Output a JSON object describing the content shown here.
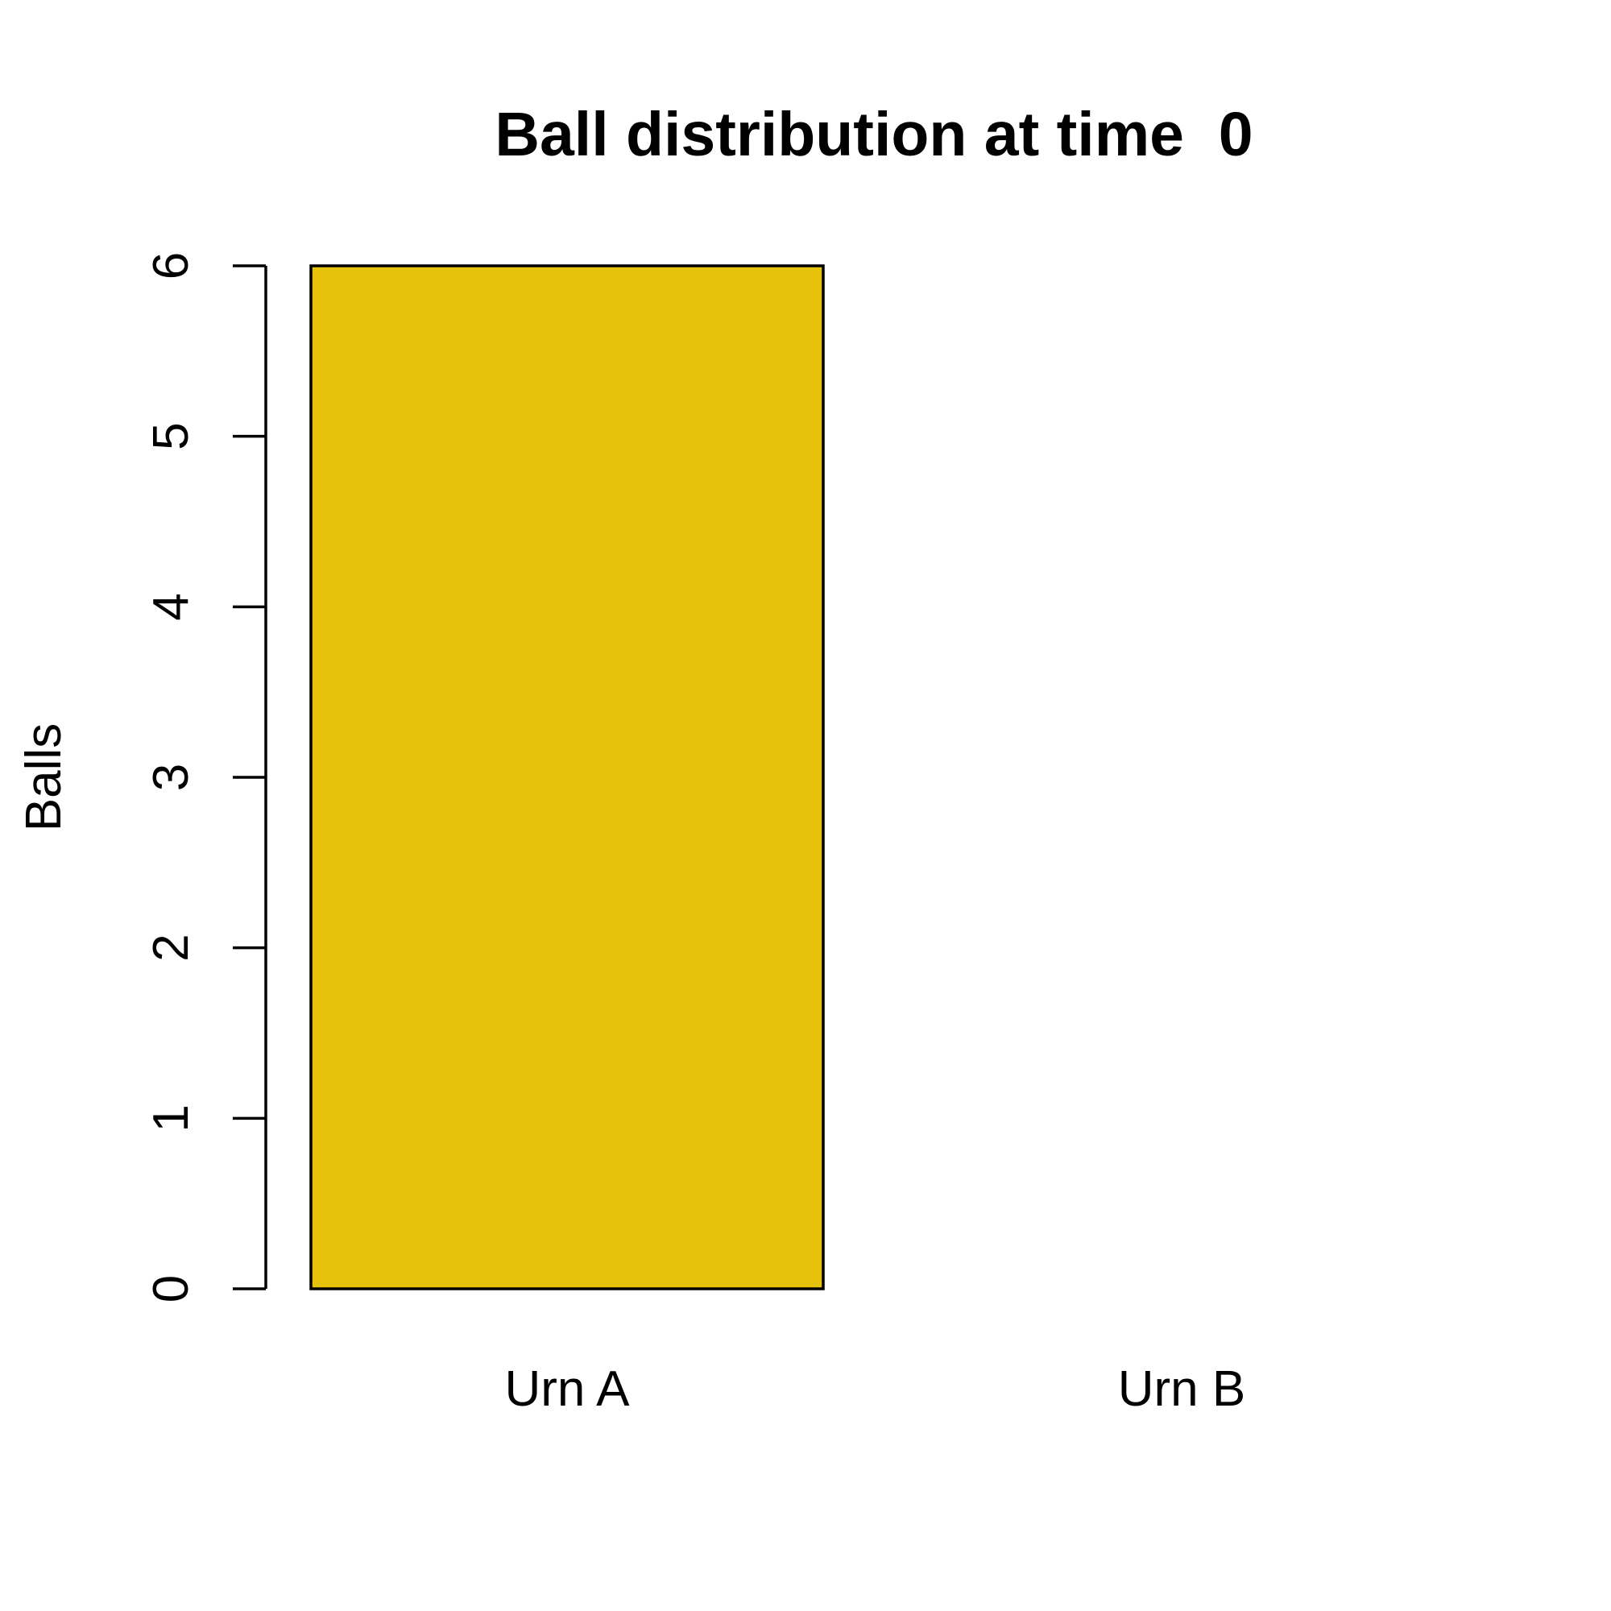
{
  "chart_data": {
    "type": "bar",
    "title": "Ball distribution at time  0",
    "xlabel": "",
    "ylabel": "Balls",
    "categories": [
      "Urn A",
      "Urn B"
    ],
    "values": [
      6,
      0
    ],
    "ylim": [
      0,
      6
    ],
    "yticks": [
      0,
      1,
      2,
      3,
      4,
      5,
      6
    ],
    "bar_color": "#E6C20A",
    "grid": false
  }
}
